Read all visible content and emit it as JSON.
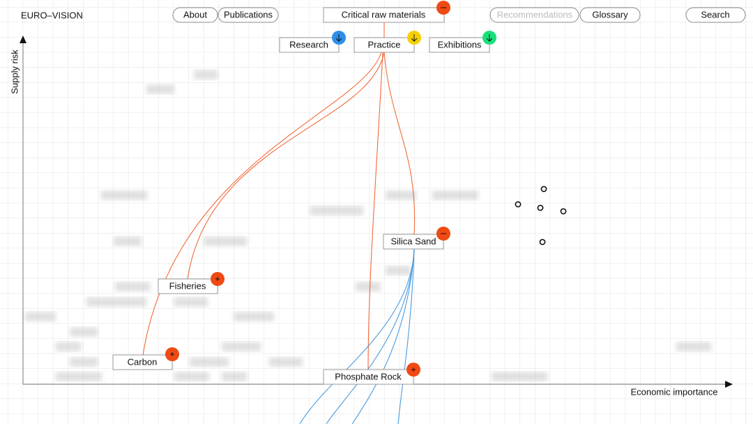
{
  "header": {
    "title": "EURO–VISION",
    "nav": [
      "About",
      "Publications",
      "Critical raw materials",
      "Recommendations",
      "Glossary",
      "Search"
    ]
  },
  "sections": [
    "Research",
    "Practice",
    "Exhibitions"
  ],
  "axes": {
    "y": "Supply risk",
    "x": "Economic importance"
  },
  "nodes": [
    "Silica Sand",
    "Fisheries",
    "Carbon",
    "Phosphate Rock"
  ]
}
